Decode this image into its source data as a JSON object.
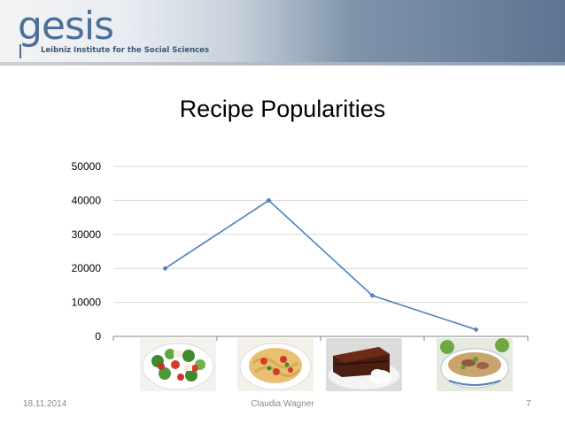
{
  "header": {
    "logo_text": "gesis",
    "logo_subtitle": "Leibniz Institute for the Social Sciences"
  },
  "chart_data": {
    "type": "line",
    "title": "Recipe Popularities",
    "categories": [
      "",
      "",
      "",
      ""
    ],
    "series": [
      {
        "values": [
          20000,
          40000,
          12000,
          2000
        ]
      }
    ],
    "ylim": [
      0,
      50000
    ],
    "yticks": [
      "0",
      "10000",
      "20000",
      "30000",
      "40000",
      "50000"
    ],
    "grid": true,
    "legend": "none",
    "line_color": "#4f81bd",
    "category_images": [
      "salad-photo-icon",
      "pasta-photo-icon",
      "chocolate-cake-photo-icon",
      "soup-photo-icon"
    ]
  },
  "footer": {
    "date": "18.11.2014",
    "author": "Claudia Wagner",
    "page_number": "7"
  }
}
